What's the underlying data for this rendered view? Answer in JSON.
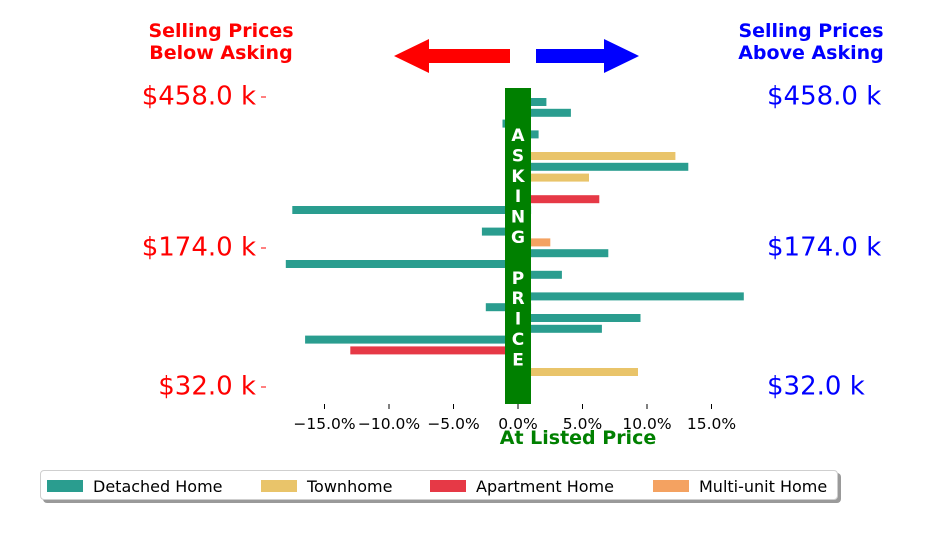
{
  "colors": {
    "detached": "#2a9d8f",
    "townhome": "#e9c46a",
    "apartment": "#e63946",
    "multiunit": "#f4a261",
    "below": "#ff0000",
    "above": "#0000ff",
    "asking": "#008000"
  },
  "header": {
    "below_line1": "Selling Prices",
    "below_line2": "Below Asking",
    "above_line1": "Selling Prices",
    "above_line2": "Above Asking"
  },
  "asking_text": "ASKING PRICE",
  "legend": [
    "Detached Home",
    "Townhome",
    "Apartment Home",
    "Multi-unit Home"
  ],
  "chart_data": {
    "type": "bar",
    "orientation": "horizontal",
    "xlabel": "At Listed Price",
    "xlim": [
      -0.2,
      0.2
    ],
    "x_ticks": [
      "−15.0%",
      "−10.0%",
      "−5.0%",
      "0.0%",
      "5.0%",
      "10.0%",
      "15.0%"
    ],
    "x_tick_values": [
      -0.15,
      -0.1,
      -0.05,
      0.0,
      0.05,
      0.1,
      0.15
    ],
    "y_ticks_left": [
      "$458.0 k",
      "$174.0 k",
      "$32.0 k"
    ],
    "y_ticks_right": [
      "$458.0 k",
      "$174.0 k",
      "$32.0 k"
    ],
    "bars": [
      {
        "type": "detached",
        "value": 0.022
      },
      {
        "type": "detached",
        "value": 0.041
      },
      {
        "type": "detached",
        "value": -0.012
      },
      {
        "type": "detached",
        "value": 0.016
      },
      {
        "type": "detached",
        "value": 0.01
      },
      {
        "type": "townhome",
        "value": 0.122
      },
      {
        "type": "detached",
        "value": 0.132
      },
      {
        "type": "townhome",
        "value": 0.055
      },
      {
        "type": "apartment",
        "value": 0.01
      },
      {
        "type": "apartment",
        "value": 0.063
      },
      {
        "type": "detached",
        "value": -0.175
      },
      {
        "type": "detached",
        "value": 0.01
      },
      {
        "type": "detached",
        "value": -0.028
      },
      {
        "type": "multiunit",
        "value": 0.025
      },
      {
        "type": "detached",
        "value": 0.07
      },
      {
        "type": "detached",
        "value": -0.18
      },
      {
        "type": "detached",
        "value": 0.034
      },
      {
        "type": "detached",
        "value": 0.01
      },
      {
        "type": "detached",
        "value": 0.175
      },
      {
        "type": "detached",
        "value": -0.025
      },
      {
        "type": "detached",
        "value": 0.095
      },
      {
        "type": "detached",
        "value": 0.065
      },
      {
        "type": "detached",
        "value": -0.165
      },
      {
        "type": "apartment",
        "value": -0.13
      },
      {
        "type": "detached",
        "value": 0.01
      },
      {
        "type": "townhome",
        "value": 0.093
      },
      {
        "type": "detached",
        "value": 0.01
      }
    ]
  }
}
